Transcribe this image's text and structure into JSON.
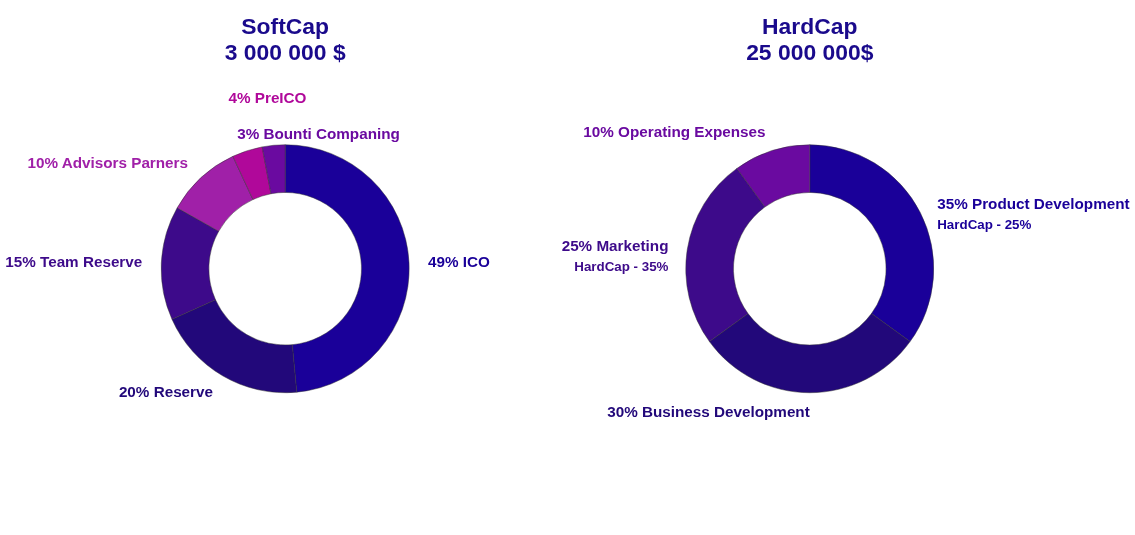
{
  "chart_data": [
    {
      "type": "donut",
      "title": "SoftCap",
      "subtitle": "3 000 000 $",
      "categories": [
        "ICO",
        "Reserve",
        "Team Reserve",
        "Advisors Parners",
        "PreICO",
        "Bounti Companing"
      ],
      "values": [
        49,
        20,
        15,
        10,
        4,
        3
      ],
      "value_labels": [
        "49%",
        "20%",
        "15%",
        "10%",
        "4%",
        "3%"
      ],
      "colors": [
        "#1a0099",
        "#22087a",
        "#3d0a8a",
        "#a020a8",
        "#b0089a",
        "#6a0aa0"
      ]
    },
    {
      "type": "donut",
      "title": "HardCap",
      "subtitle": "25 000 000$",
      "categories": [
        "Product Development",
        "Business Development",
        "Marketing",
        "Operating Expenses"
      ],
      "values": [
        35,
        30,
        25,
        10
      ],
      "value_labels": [
        "35%",
        "30%",
        "25%",
        "10%"
      ],
      "colors": [
        "#1a0099",
        "#22087a",
        "#3d0a8a",
        "#6a0aa0"
      ],
      "annotations": [
        "HardCap - 35%",
        "HardCap - 25%"
      ]
    }
  ]
}
